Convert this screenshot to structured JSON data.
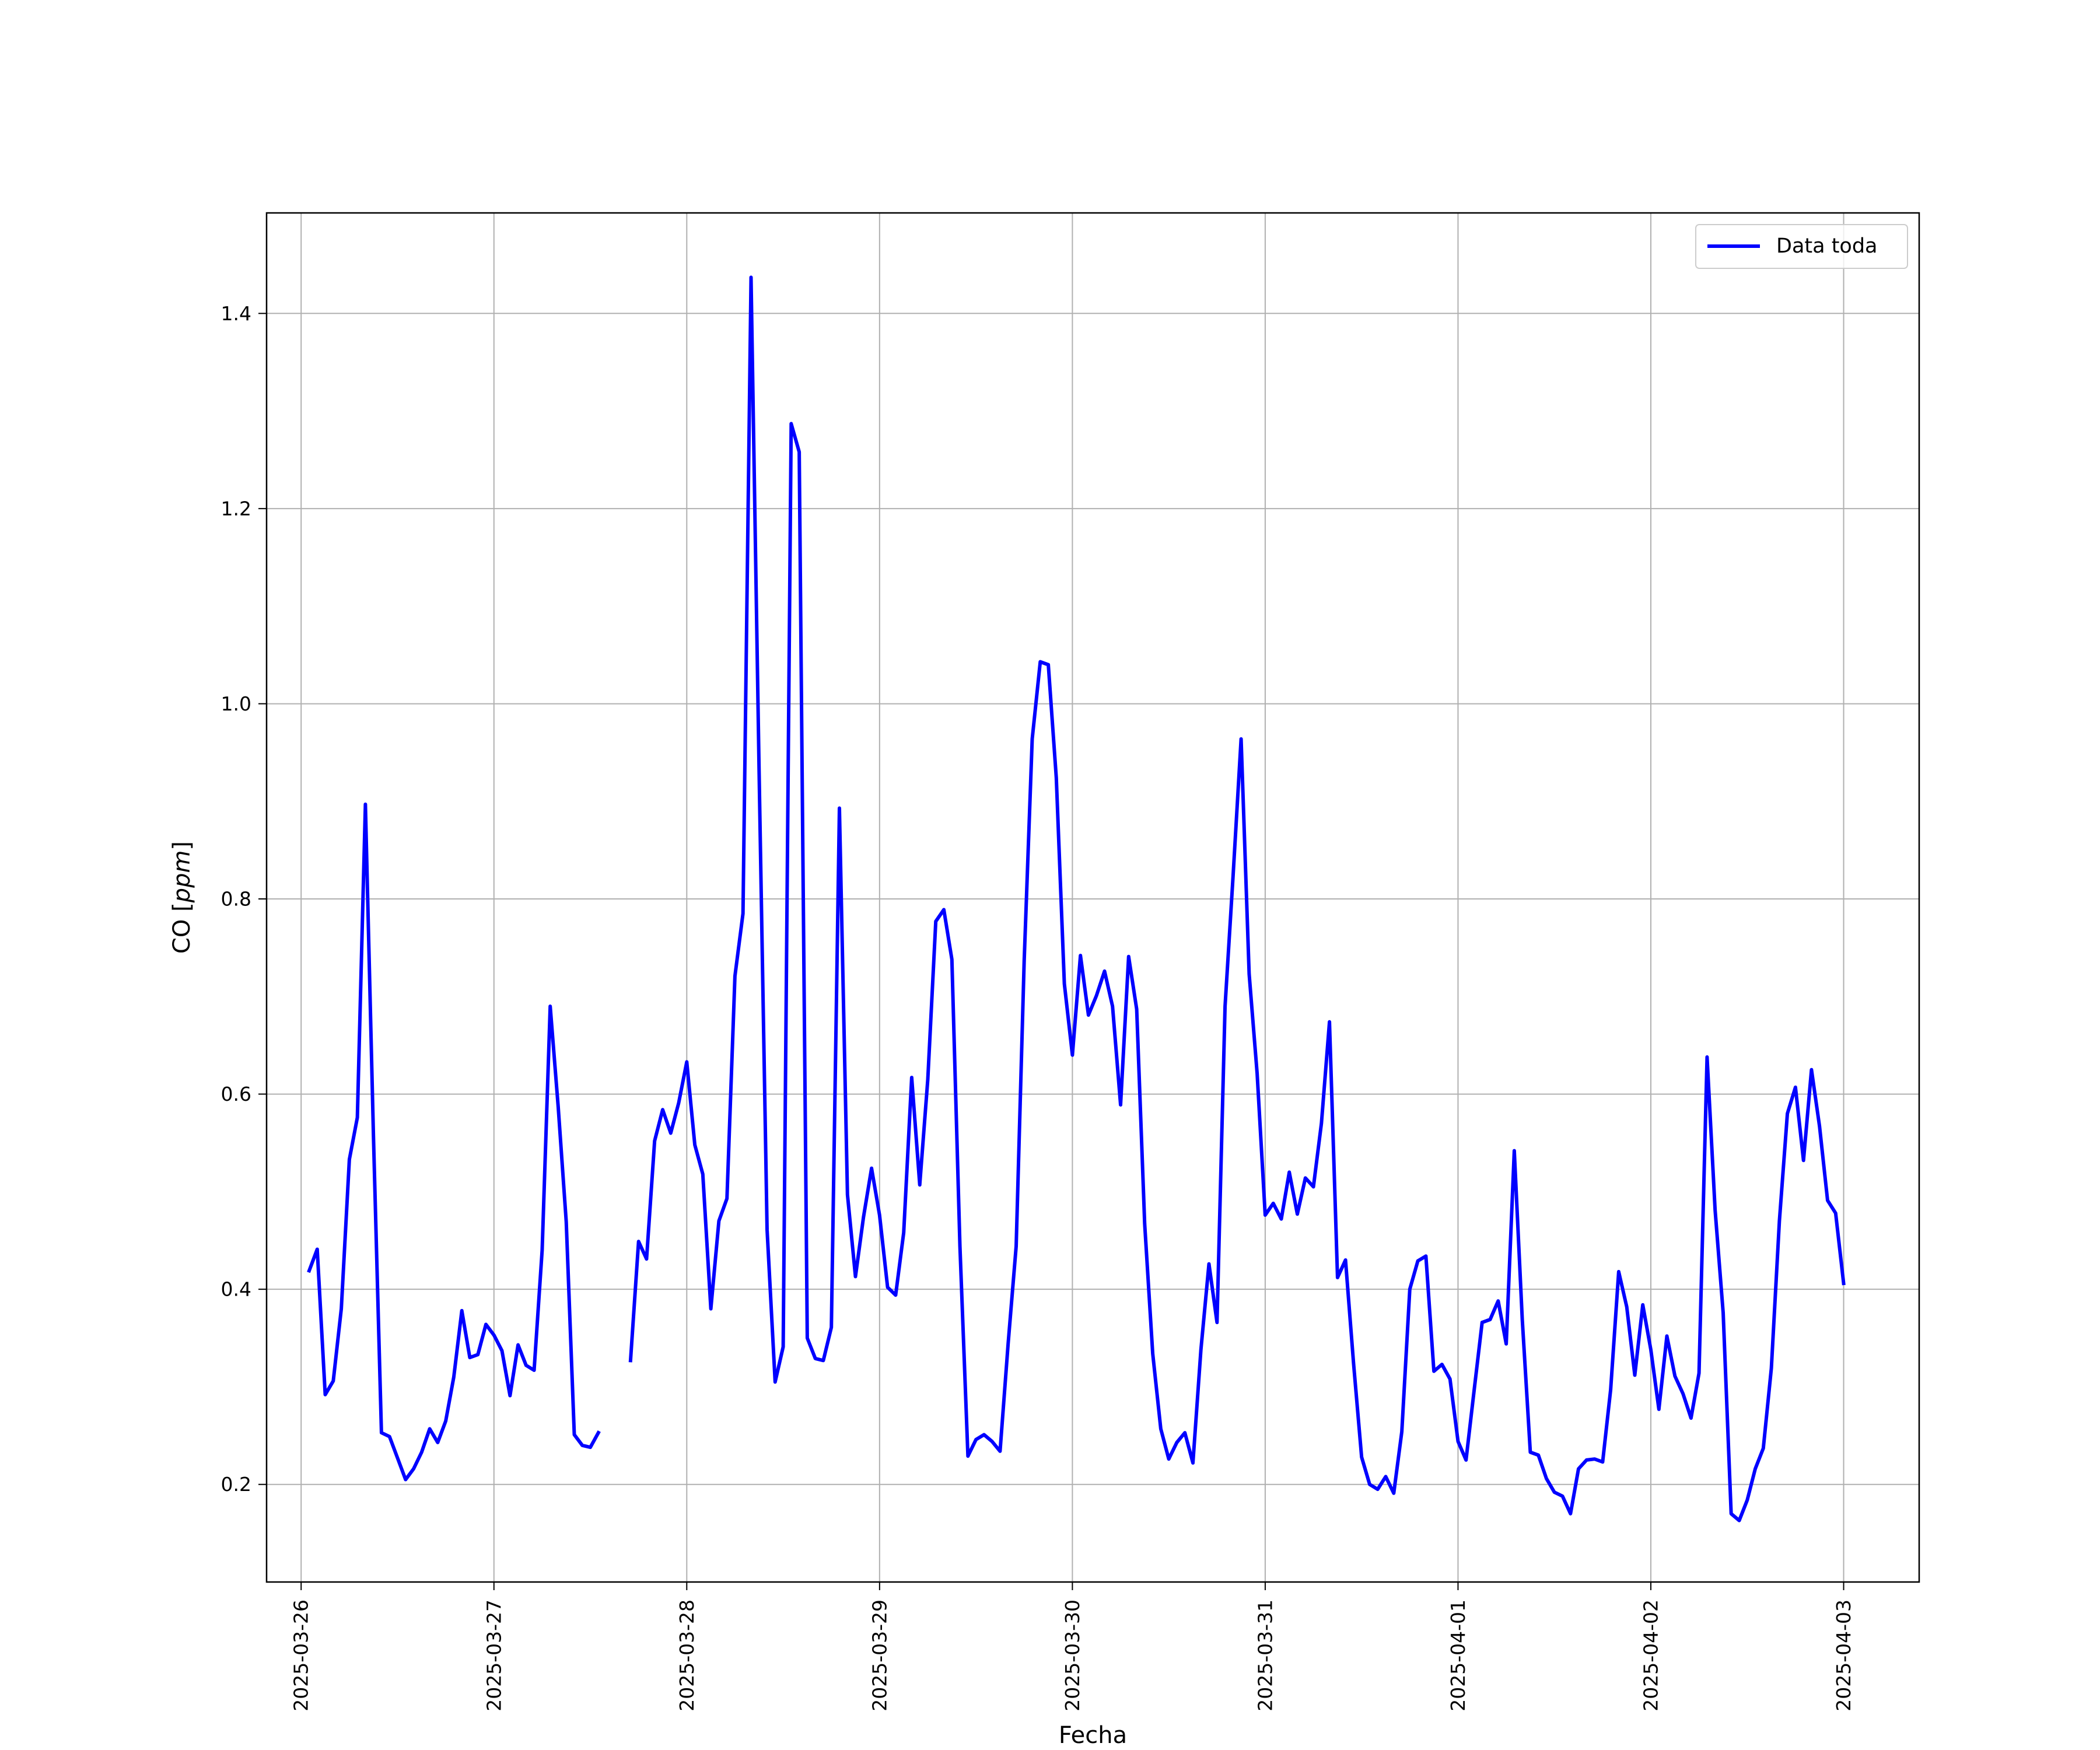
{
  "chart_data": {
    "type": "line",
    "title": "",
    "xlabel": "Fecha",
    "ylabel": "CO [ppm]",
    "ylabel_parts": {
      "prefix": "CO [",
      "unit": "ppm",
      "suffix": "]"
    },
    "xlim": [
      "2025-03-25T19:42",
      "2025-04-03T09:24"
    ],
    "ylim": [
      0.1,
      1.503
    ],
    "x_ticks": [
      "2025-03-26",
      "2025-03-27",
      "2025-03-28",
      "2025-03-29",
      "2025-03-30",
      "2025-03-31",
      "2025-04-01",
      "2025-04-02",
      "2025-04-03"
    ],
    "y_ticks": [
      0.2,
      0.4,
      0.6,
      0.8,
      1.0,
      1.2,
      1.4
    ],
    "y_tick_labels": [
      "0.2",
      "0.4",
      "0.6",
      "0.8",
      "1.0",
      "1.2",
      "1.4"
    ],
    "grid": true,
    "legend_position": "top-right",
    "series": [
      {
        "name": "Data toda",
        "color": "#0000ff",
        "points": [
          [
            "2025-03-26T01:00",
            0.419
          ],
          [
            "2025-03-26T02:00",
            0.441
          ],
          [
            "2025-03-26T03:00",
            0.292
          ],
          [
            "2025-03-26T04:00",
            0.306
          ],
          [
            "2025-03-26T05:00",
            0.38
          ],
          [
            "2025-03-26T06:00",
            0.533
          ],
          [
            "2025-03-26T07:00",
            0.576
          ],
          [
            "2025-03-26T08:00",
            0.897
          ],
          [
            "2025-03-26T09:00",
            0.557
          ],
          [
            "2025-03-26T10:00",
            0.253
          ],
          [
            "2025-03-26T11:00",
            0.249
          ],
          [
            "2025-03-26T12:00",
            0.227
          ],
          [
            "2025-03-26T13:00",
            0.205
          ],
          [
            "2025-03-26T14:00",
            0.216
          ],
          [
            "2025-03-26T15:00",
            0.233
          ],
          [
            "2025-03-26T16:00",
            0.257
          ],
          [
            "2025-03-26T17:00",
            0.243
          ],
          [
            "2025-03-26T18:00",
            0.265
          ],
          [
            "2025-03-26T19:00",
            0.31
          ],
          [
            "2025-03-26T20:00",
            0.378
          ],
          [
            "2025-03-26T21:00",
            0.33
          ],
          [
            "2025-03-26T22:00",
            0.333
          ],
          [
            "2025-03-26T23:00",
            0.364
          ],
          [
            "2025-03-27T00:00",
            0.353
          ],
          [
            "2025-03-27T01:00",
            0.337
          ],
          [
            "2025-03-27T02:00",
            0.291
          ],
          [
            "2025-03-27T03:00",
            0.343
          ],
          [
            "2025-03-27T04:00",
            0.322
          ],
          [
            "2025-03-27T05:00",
            0.317
          ],
          [
            "2025-03-27T06:00",
            0.44
          ],
          [
            "2025-03-27T07:00",
            0.69
          ],
          [
            "2025-03-27T08:00",
            0.587
          ],
          [
            "2025-03-27T09:00",
            0.469
          ],
          [
            "2025-03-27T10:00",
            0.251
          ],
          [
            "2025-03-27T11:00",
            0.24
          ],
          [
            "2025-03-27T12:00",
            0.238
          ],
          [
            "2025-03-27T13:00",
            0.253
          ],
          null,
          [
            "2025-03-27T17:00",
            0.327
          ],
          [
            "2025-03-27T18:00",
            0.449
          ],
          [
            "2025-03-27T19:00",
            0.431
          ],
          [
            "2025-03-27T20:00",
            0.552
          ],
          [
            "2025-03-27T21:00",
            0.584
          ],
          [
            "2025-03-27T22:00",
            0.56
          ],
          [
            "2025-03-27T23:00",
            0.591
          ],
          [
            "2025-03-28T00:00",
            0.633
          ],
          [
            "2025-03-28T01:00",
            0.548
          ],
          [
            "2025-03-28T02:00",
            0.518
          ],
          [
            "2025-03-28T03:00",
            0.38
          ],
          [
            "2025-03-28T04:00",
            0.47
          ],
          [
            "2025-03-28T05:00",
            0.493
          ],
          [
            "2025-03-28T06:00",
            0.721
          ],
          [
            "2025-03-28T07:00",
            0.785
          ],
          [
            "2025-03-28T08:00",
            1.437
          ],
          [
            "2025-03-28T09:00",
            0.931
          ],
          [
            "2025-03-28T10:00",
            0.461
          ],
          [
            "2025-03-28T11:00",
            0.305
          ],
          [
            "2025-03-28T12:00",
            0.341
          ],
          [
            "2025-03-28T13:00",
            1.287
          ],
          [
            "2025-03-28T14:00",
            1.258
          ],
          [
            "2025-03-28T15:00",
            0.35
          ],
          [
            "2025-03-28T16:00",
            0.329
          ],
          [
            "2025-03-28T17:00",
            0.327
          ],
          [
            "2025-03-28T18:00",
            0.361
          ],
          [
            "2025-03-28T19:00",
            0.893
          ],
          [
            "2025-03-28T20:00",
            0.497
          ],
          [
            "2025-03-28T21:00",
            0.413
          ],
          [
            "2025-03-28T22:00",
            0.474
          ],
          [
            "2025-03-28T23:00",
            0.524
          ],
          [
            "2025-03-29T00:00",
            0.476
          ],
          [
            "2025-03-29T01:00",
            0.402
          ],
          [
            "2025-03-29T02:00",
            0.394
          ],
          [
            "2025-03-29T03:00",
            0.458
          ],
          [
            "2025-03-29T04:00",
            0.617
          ],
          [
            "2025-03-29T05:00",
            0.507
          ],
          [
            "2025-03-29T06:00",
            0.615
          ],
          [
            "2025-03-29T07:00",
            0.777
          ],
          [
            "2025-03-29T08:00",
            0.789
          ],
          [
            "2025-03-29T09:00",
            0.738
          ],
          [
            "2025-03-29T10:00",
            0.444
          ],
          [
            "2025-03-29T11:00",
            0.229
          ],
          [
            "2025-03-29T12:00",
            0.246
          ],
          [
            "2025-03-29T13:00",
            0.251
          ],
          [
            "2025-03-29T14:00",
            0.244
          ],
          [
            "2025-03-29T15:00",
            0.234
          ],
          [
            "2025-03-29T16:00",
            0.344
          ],
          [
            "2025-03-29T17:00",
            0.444
          ],
          [
            "2025-03-29T18:00",
            0.736
          ],
          [
            "2025-03-29T19:00",
            0.964
          ],
          [
            "2025-03-29T20:00",
            1.043
          ],
          [
            "2025-03-29T21:00",
            1.04
          ],
          [
            "2025-03-29T22:00",
            0.924
          ],
          [
            "2025-03-29T23:00",
            0.713
          ],
          [
            "2025-03-30T00:00",
            0.64
          ],
          [
            "2025-03-30T01:00",
            0.742
          ],
          [
            "2025-03-30T02:00",
            0.681
          ],
          [
            "2025-03-30T03:00",
            0.701
          ],
          [
            "2025-03-30T04:00",
            0.726
          ],
          [
            "2025-03-30T05:00",
            0.69
          ],
          [
            "2025-03-30T06:00",
            0.589
          ],
          [
            "2025-03-30T07:00",
            0.741
          ],
          [
            "2025-03-30T08:00",
            0.687
          ],
          [
            "2025-03-30T09:00",
            0.467
          ],
          [
            "2025-03-30T10:00",
            0.334
          ],
          [
            "2025-03-30T11:00",
            0.257
          ],
          [
            "2025-03-30T12:00",
            0.226
          ],
          [
            "2025-03-30T13:00",
            0.243
          ],
          [
            "2025-03-30T14:00",
            0.253
          ],
          [
            "2025-03-30T15:00",
            0.222
          ],
          [
            "2025-03-30T16:00",
            0.338
          ],
          [
            "2025-03-30T17:00",
            0.426
          ],
          [
            "2025-03-30T18:00",
            0.366
          ],
          [
            "2025-03-30T19:00",
            0.69
          ],
          [
            "2025-03-30T20:00",
            0.823
          ],
          [
            "2025-03-30T21:00",
            0.964
          ],
          [
            "2025-03-30T22:00",
            0.723
          ],
          [
            "2025-03-30T23:00",
            0.621
          ],
          [
            "2025-03-31T00:00",
            0.476
          ],
          [
            "2025-03-31T01:00",
            0.488
          ],
          [
            "2025-03-31T02:00",
            0.472
          ],
          [
            "2025-03-31T03:00",
            0.52
          ],
          [
            "2025-03-31T04:00",
            0.477
          ],
          [
            "2025-03-31T05:00",
            0.514
          ],
          [
            "2025-03-31T06:00",
            0.505
          ],
          [
            "2025-03-31T07:00",
            0.57
          ],
          [
            "2025-03-31T08:00",
            0.674
          ],
          [
            "2025-03-31T09:00",
            0.412
          ],
          [
            "2025-03-31T10:00",
            0.43
          ],
          [
            "2025-03-31T11:00",
            0.324
          ],
          [
            "2025-03-31T12:00",
            0.228
          ],
          [
            "2025-03-31T13:00",
            0.2
          ],
          [
            "2025-03-31T14:00",
            0.195
          ],
          [
            "2025-03-31T15:00",
            0.208
          ],
          [
            "2025-03-31T16:00",
            0.191
          ],
          [
            "2025-03-31T17:00",
            0.254
          ],
          [
            "2025-03-31T18:00",
            0.4
          ],
          [
            "2025-03-31T19:00",
            0.429
          ],
          [
            "2025-03-31T20:00",
            0.434
          ],
          [
            "2025-03-31T21:00",
            0.316
          ],
          [
            "2025-03-31T22:00",
            0.323
          ],
          [
            "2025-03-31T23:00",
            0.308
          ],
          [
            "2025-04-01T00:00",
            0.244
          ],
          [
            "2025-04-01T01:00",
            0.225
          ],
          [
            "2025-04-01T02:00",
            0.296
          ],
          [
            "2025-04-01T03:00",
            0.366
          ],
          [
            "2025-04-01T04:00",
            0.369
          ],
          [
            "2025-04-01T05:00",
            0.388
          ],
          [
            "2025-04-01T06:00",
            0.344
          ],
          [
            "2025-04-01T07:00",
            0.542
          ],
          [
            "2025-04-01T08:00",
            0.369
          ],
          [
            "2025-04-01T09:00",
            0.233
          ],
          [
            "2025-04-01T10:00",
            0.23
          ],
          [
            "2025-04-01T11:00",
            0.206
          ],
          [
            "2025-04-01T12:00",
            0.192
          ],
          [
            "2025-04-01T13:00",
            0.188
          ],
          [
            "2025-04-01T14:00",
            0.17
          ],
          [
            "2025-04-01T15:00",
            0.216
          ],
          [
            "2025-04-01T16:00",
            0.225
          ],
          [
            "2025-04-01T17:00",
            0.226
          ],
          [
            "2025-04-01T18:00",
            0.223
          ],
          [
            "2025-04-01T19:00",
            0.297
          ],
          [
            "2025-04-01T20:00",
            0.418
          ],
          [
            "2025-04-01T21:00",
            0.382
          ],
          [
            "2025-04-01T22:00",
            0.312
          ],
          [
            "2025-04-01T23:00",
            0.384
          ],
          [
            "2025-04-02T00:00",
            0.338
          ],
          [
            "2025-04-02T01:00",
            0.277
          ],
          [
            "2025-04-02T02:00",
            0.352
          ],
          [
            "2025-04-02T03:00",
            0.311
          ],
          [
            "2025-04-02T04:00",
            0.293
          ],
          [
            "2025-04-02T05:00",
            0.268
          ],
          [
            "2025-04-02T06:00",
            0.314
          ],
          [
            "2025-04-02T07:00",
            0.638
          ],
          [
            "2025-04-02T08:00",
            0.481
          ],
          [
            "2025-04-02T09:00",
            0.376
          ],
          [
            "2025-04-02T10:00",
            0.17
          ],
          [
            "2025-04-02T11:00",
            0.163
          ],
          [
            "2025-04-02T12:00",
            0.184
          ],
          [
            "2025-04-02T13:00",
            0.216
          ],
          [
            "2025-04-02T14:00",
            0.237
          ],
          [
            "2025-04-02T15:00",
            0.319
          ],
          [
            "2025-04-02T16:00",
            0.47
          ],
          [
            "2025-04-02T17:00",
            0.58
          ],
          [
            "2025-04-02T18:00",
            0.607
          ],
          [
            "2025-04-02T19:00",
            0.532
          ],
          [
            "2025-04-02T20:00",
            0.625
          ],
          [
            "2025-04-02T21:00",
            0.567
          ],
          [
            "2025-04-02T22:00",
            0.491
          ],
          [
            "2025-04-02T23:00",
            0.478
          ],
          [
            "2025-04-03T00:00",
            0.406
          ]
        ]
      }
    ]
  }
}
